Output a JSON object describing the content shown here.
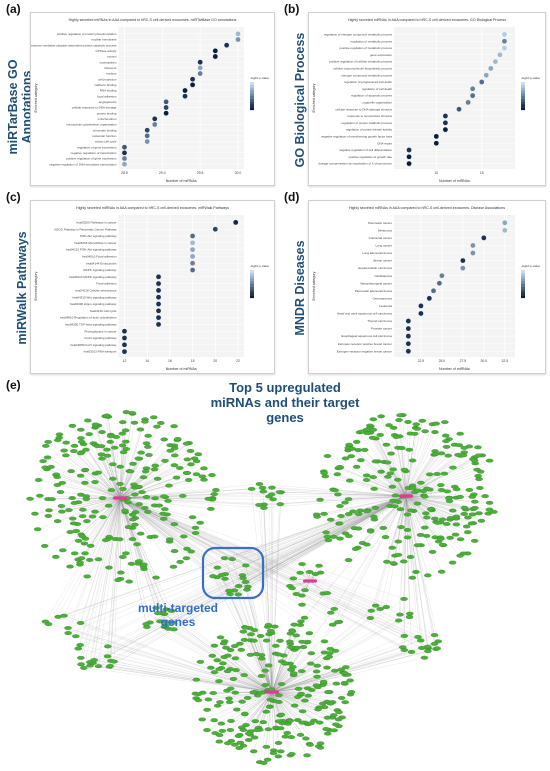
{
  "panels": {
    "a": {
      "letter": "(a)",
      "side_title": [
        "miRTarBase GO",
        "Annotations"
      ]
    },
    "b": {
      "letter": "(b)",
      "side_title": [
        "GO Biological Process"
      ]
    },
    "c": {
      "letter": "(c)",
      "side_title": [
        "miRWalk Pathways"
      ]
    },
    "d": {
      "letter": "(d)",
      "side_title": [
        "MNDR Diseases"
      ]
    },
    "e": {
      "letter": "(e)"
    }
  },
  "network": {
    "title_line1": "Top 5 upregulated",
    "title_line2": "miRNAs and their target",
    "title_line3": "genes",
    "multi_line1": "multi-targeted",
    "multi_line2": "genes",
    "colors": {
      "node": "#4caf3a",
      "hub": "#e0399a",
      "edge": "#9a9a9a",
      "box": "#3a6fc4"
    }
  },
  "chart_data": [
    {
      "type": "scatter",
      "title": "Highly secreted miRNAs in AAA compared to hRC-S cell-derived exosomes. miRTarBase GO annotations",
      "xlabel": "Number of miRNAs",
      "ylabel": "Enriched category",
      "xticks": [
        "28.5",
        "29.0",
        "29.5",
        "30.0"
      ],
      "xlim": [
        28.5,
        30.0
      ],
      "legend_title": "-log10 p-value",
      "y_labels": [
        "positive regulation of protein phosphorylation",
        "nuclear membrane",
        "proteasome-mediated ubiquitin-dependent protein catabolic process",
        "GTPase activity",
        "cytosol",
        "nucleoplasm",
        "ribosome",
        "nucleus",
        "cell projection",
        "cadherin binding",
        "RNA binding",
        "focal adhesion",
        "angiogenesis",
        "cellular response to DNA damage",
        "protein binding",
        "mitochondrion",
        "microtubule cytoskeleton organization",
        "chromatin binding",
        "molecular function",
        "mitotic cell cycle",
        "regulation of gene expression",
        "negative regulation of transcription",
        "positive regulation of gene expression",
        "negative regulation of DNA-templated transcription"
      ],
      "x": [
        30.0,
        30.0,
        29.85,
        29.7,
        29.7,
        29.5,
        29.5,
        29.5,
        29.4,
        29.4,
        29.3,
        29.3,
        29.05,
        29.05,
        29.05,
        28.9,
        28.9,
        28.8,
        28.8,
        28.8,
        28.5,
        28.5,
        28.5,
        28.5
      ],
      "values": [
        0.2,
        0.4,
        0.9,
        1.0,
        1.0,
        0.9,
        0.3,
        0.5,
        0.9,
        1.0,
        1.0,
        0.9,
        0.7,
        0.8,
        1.0,
        0.9,
        0.5,
        0.8,
        0.6,
        0.4,
        0.7,
        0.9,
        0.5,
        0.3
      ]
    },
    {
      "type": "scatter",
      "title": "Highly secreted miRNAs in AAA compared to hRC-S cell-derived exosomes. GO Biological Process",
      "xlabel": "Number of miRNAs",
      "ylabel": "Enriched category",
      "xticks": [
        "10",
        "15"
      ],
      "xlim": [
        6,
        18
      ],
      "legend_title": "-log10 p-value",
      "y_labels": [
        "regulation of nitrogen compound metabolic process",
        "regulation of metabolic process",
        "positive regulation of metabolic process",
        "gene expression",
        "positive regulation of cellular metabolic process",
        "cellular macromolecule biosynthetic process",
        "nitrogen compound metabolic process",
        "regulation of programmed cell death",
        "regulation of cell death",
        "regulation of apoptotic process",
        "organelle organization",
        "cellular response to DNA damage stimulus",
        "response to temperature stimulus",
        "regulation of protein catabolic process",
        "regulation of protein kinase activity",
        "negative regulation of transforming growth factor beta",
        "DNA repair",
        "negative regulation of cell differentiation",
        "positive regulation of growth rate",
        "dosage compensation by inactivation of X chromosome"
      ],
      "x": [
        17.5,
        17.5,
        17.5,
        17.0,
        16.5,
        16.0,
        15.5,
        15.0,
        14.0,
        14.0,
        13.5,
        12.5,
        11.0,
        11.0,
        11.0,
        10.0,
        10.0,
        7.0,
        7.0,
        7.0
      ],
      "values": [
        0.1,
        0.5,
        0.1,
        0.2,
        0.2,
        0.3,
        0.3,
        0.6,
        0.5,
        0.6,
        0.5,
        0.7,
        0.9,
        0.9,
        1.0,
        1.0,
        1.0,
        0.9,
        1.0,
        1.0
      ]
    },
    {
      "type": "scatter",
      "title": "Highly secreted miRNAs in AAA compared to hRC-S cell-derived exosomes. miRWalk Pathways",
      "xlabel": "Number of miRNAs",
      "ylabel": "Enriched category",
      "xticks": [
        "12",
        "14",
        "16",
        "18",
        "20",
        "22"
      ],
      "xlim": [
        12,
        22
      ],
      "legend_title": "-log10 p-value",
      "y_labels": [
        "hsa05200 Pathways in cancer",
        "KEGG Pathway in Pancreatic Cancer Pathway",
        "PI3K-Akt signaling pathway",
        "hsa05206 MicroRNAs in cancer",
        "hsa04151 PI3K-Akt signaling pathway",
        "hsa04510 Focal adhesion",
        "hsa04144 Endocytosis",
        "MAPK signaling pathway",
        "hsa04010 MAPK signaling pathway",
        "Focal adhesion",
        "hsa04218 Cellular senescence",
        "hsa04310 Wnt signaling pathway",
        "hsa04390 Hippo signaling pathway",
        "hsa04110 Cell cycle",
        "hsa04810 Regulation of actin cytoskeleton",
        "hsa04350 TGF-beta signaling pathway",
        "Proteoglycans in cancer",
        "FoxO signaling pathway",
        "hsa04068 FoxO signaling pathway",
        "hsa03013 RNA transport"
      ],
      "x": [
        21.8,
        20.0,
        18.0,
        18.0,
        18.0,
        18.0,
        18.0,
        18.0,
        15.0,
        15.0,
        15.0,
        15.0,
        15.0,
        15.0,
        15.0,
        15.0,
        12.0,
        12.0,
        12.0,
        12.0
      ],
      "values": [
        0.95,
        0.8,
        0.6,
        0.2,
        0.3,
        0.3,
        0.5,
        0.6,
        0.9,
        0.9,
        0.9,
        0.9,
        0.9,
        0.9,
        0.9,
        0.9,
        0.9,
        0.9,
        0.9,
        0.9
      ]
    },
    {
      "type": "scatter",
      "title": "Highly secreted miRNAs in AAA compared to hRC-S cell-derived exosomes. Disease Associations",
      "xlabel": "Number of miRNAs",
      "ylabel": "Enriched category",
      "xticks": [
        "22.5",
        "25.0",
        "27.5",
        "30.0",
        "32.5"
      ],
      "xlim": [
        20,
        33
      ],
      "legend_title": "-log10 p-value",
      "y_labels": [
        "Pancreatic cancer",
        "Melanoma",
        "Colorectal cancer",
        "Lung cancer",
        "Lung adenocarcinoma",
        "Breast cancer",
        "Hepatocellular carcinoma",
        "Glioblastoma",
        "Nasopharyngeal cancer",
        "Pancreatic adenocarcinoma",
        "Osteosarcoma",
        "Leukemia",
        "Head and neck squamous cell carcinoma",
        "Thyroid carcinoma",
        "Prostate cancer",
        "Esophageal squamous cell carcinoma",
        "Estrogen-receptor positive breast cancer",
        "Estrogen-receptor negative breast cancer"
      ],
      "x": [
        32.5,
        32.5,
        30.0,
        28.7,
        28.7,
        27.5,
        27.5,
        25.0,
        24.7,
        24.0,
        23.5,
        22.5,
        22.5,
        21.0,
        21.0,
        21.0,
        21.0,
        21.0
      ],
      "values": [
        0.3,
        0.2,
        0.9,
        0.4,
        0.4,
        0.9,
        0.4,
        0.5,
        0.6,
        0.6,
        0.9,
        0.9,
        0.9,
        0.9,
        0.9,
        0.9,
        0.9,
        0.9
      ]
    }
  ]
}
